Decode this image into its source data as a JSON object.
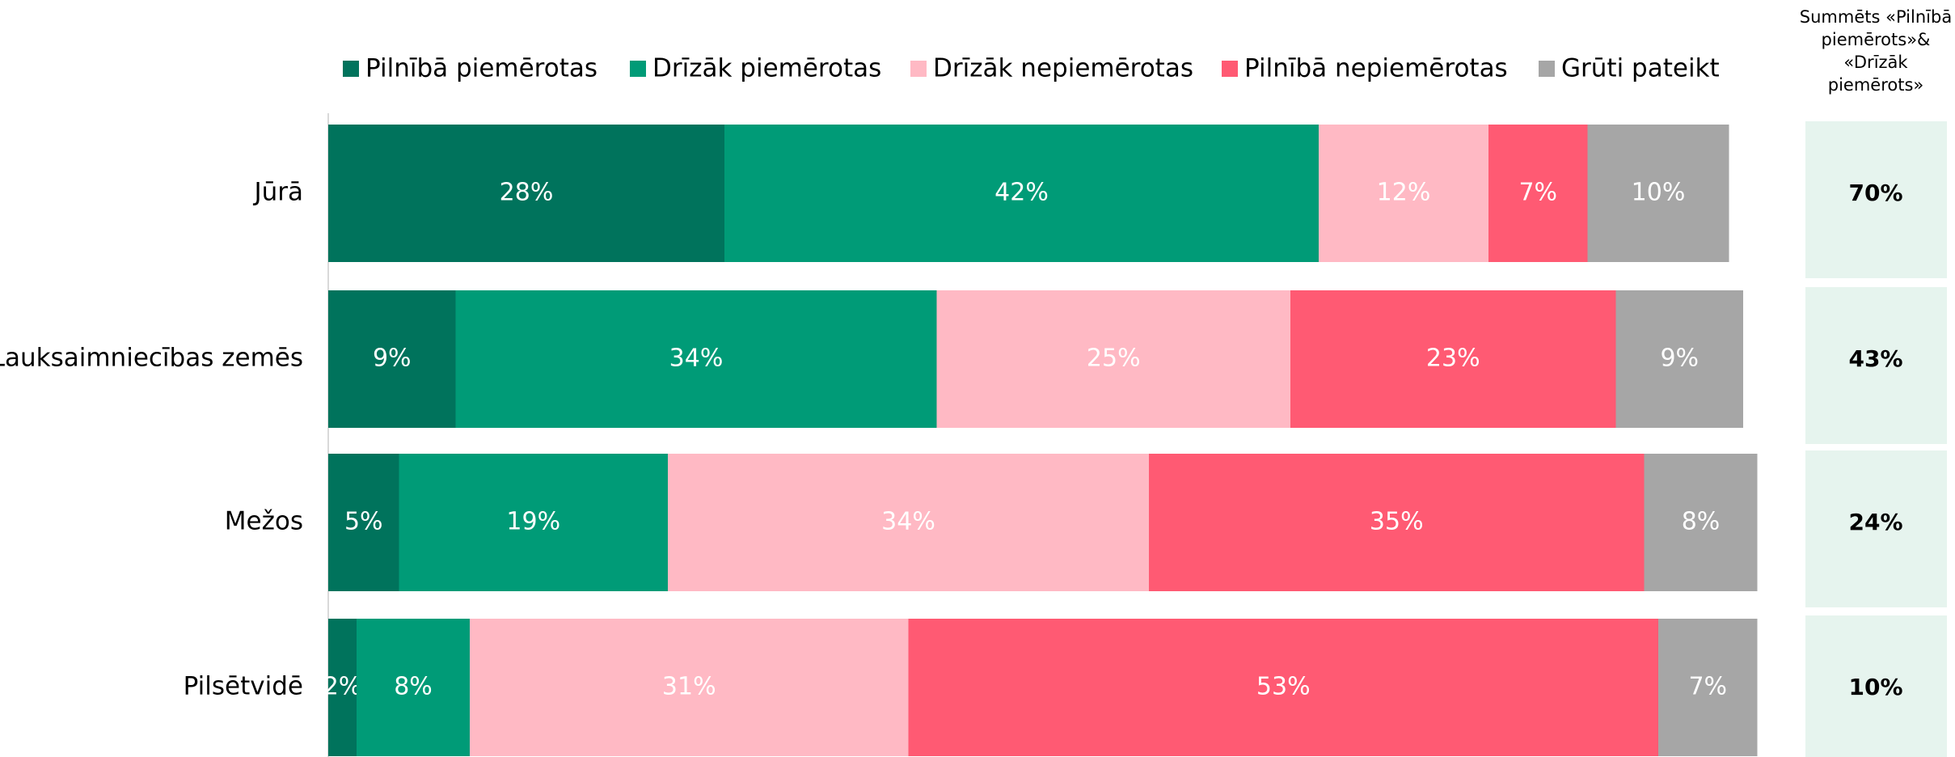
{
  "chart_data": {
    "type": "bar",
    "orientation": "horizontal",
    "stacked": true,
    "categories": [
      "Jūrā",
      "Lauksaimniecības zemēs",
      "Mežos",
      "Pilsētvidē"
    ],
    "series": [
      {
        "name": "Pilnībā piemērotas",
        "color": "#00735c",
        "values": [
          28,
          9,
          5,
          2
        ],
        "value_labels": [
          "28%",
          "9%",
          "5%",
          "2%"
        ]
      },
      {
        "name": "Drīzāk piemērotas",
        "color": "#009b77",
        "values": [
          42,
          34,
          19,
          8
        ],
        "value_labels": [
          "42%",
          "34%",
          "19%",
          "8%"
        ]
      },
      {
        "name": "Drīzāk nepiemērotas",
        "color": "#ffb9c4",
        "values": [
          12,
          25,
          34,
          31
        ],
        "value_labels": [
          "12%",
          "25%",
          "34%",
          "31%"
        ]
      },
      {
        "name": "Pilnībā nepiemērotas",
        "color": "#ff5a73",
        "values": [
          7,
          23,
          35,
          53
        ],
        "value_labels": [
          "7%",
          "23%",
          "35%",
          "53%"
        ]
      },
      {
        "name": "Grūti pateikt",
        "color": "#a6a6a6",
        "values": [
          10,
          9,
          8,
          7
        ],
        "value_labels": [
          "10%",
          "9%",
          "8%",
          "7%"
        ]
      }
    ],
    "summary": {
      "title_lines": [
        "Summēts «Pilnībā",
        "piemērots»&",
        "«Drīzāk",
        "piemērots»"
      ],
      "values": [
        70,
        43,
        24,
        10
      ],
      "value_labels": [
        "70%",
        "43%",
        "24%",
        "10%"
      ],
      "color": "#e6f4ee"
    }
  }
}
